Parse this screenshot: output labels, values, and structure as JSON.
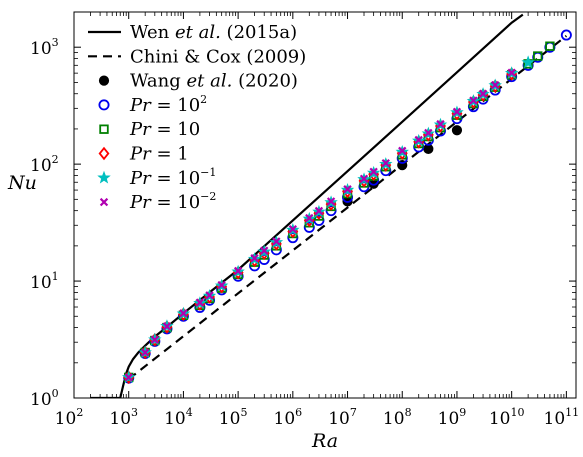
{
  "chart_data": {
    "type": "scatter",
    "xlabel": "Ra",
    "ylabel": "Nu",
    "xscale": "log",
    "yscale": "log",
    "xlim": [
      100,
      150000000000
    ],
    "ylim": [
      1,
      2000
    ],
    "grid": false,
    "legend_position": "top-left",
    "x_ticks": [
      {
        "base": "10",
        "exp": "2",
        "value": 100
      },
      {
        "base": "10",
        "exp": "3",
        "value": 1000
      },
      {
        "base": "10",
        "exp": "4",
        "value": 10000
      },
      {
        "base": "10",
        "exp": "5",
        "value": 100000
      },
      {
        "base": "10",
        "exp": "6",
        "value": 1000000
      },
      {
        "base": "10",
        "exp": "7",
        "value": 10000000
      },
      {
        "base": "10",
        "exp": "8",
        "value": 100000000
      },
      {
        "base": "10",
        "exp": "9",
        "value": 1000000000
      },
      {
        "base": "10",
        "exp": "10",
        "value": 10000000000
      },
      {
        "base": "10",
        "exp": "11",
        "value": 100000000000
      }
    ],
    "y_ticks": [
      {
        "base": "10",
        "exp": "0",
        "value": 1
      },
      {
        "base": "10",
        "exp": "1",
        "value": 10
      },
      {
        "base": "10",
        "exp": "2",
        "value": 100
      },
      {
        "base": "10",
        "exp": "3",
        "value": 1000
      }
    ],
    "series": [
      {
        "name": "Wen et al. (2015a)",
        "legend_parts": [
          {
            "text": "Wen ",
            "italic": false
          },
          {
            "text": "et al.",
            "italic": true
          },
          {
            "text": " (2015a)",
            "italic": false
          }
        ],
        "kind": "line",
        "style": "solid",
        "color": "#000000",
        "x": [
          200,
          400,
          600,
          700,
          800,
          900,
          1000,
          1200,
          1500,
          2000,
          3000,
          5000,
          10000,
          30000,
          100000,
          1000000,
          10000000,
          100000000,
          1000000000,
          10000000000,
          16000000000
        ],
        "y": [
          1.0,
          1.0,
          1.0,
          1.0,
          1.3,
          1.62,
          1.85,
          2.15,
          2.45,
          2.8,
          3.35,
          4.05,
          5.3,
          8.0,
          12.5,
          33,
          87,
          230,
          610,
          1620,
          1900
        ]
      },
      {
        "name": "Chini & Cox (2009)",
        "legend_parts": [
          {
            "text": "Chini & Cox (2009)",
            "italic": false
          }
        ],
        "kind": "line",
        "style": "dashed",
        "color": "#000000",
        "x": [
          1000,
          100000000000
        ],
        "y": [
          1.45,
          1250
        ]
      },
      {
        "name": "Wang et al. (2020)",
        "legend_parts": [
          {
            "text": "Wang ",
            "italic": false
          },
          {
            "text": "et al.",
            "italic": true
          },
          {
            "text": " (2020)",
            "italic": false
          }
        ],
        "kind": "marker",
        "marker": "filled-circle",
        "color": "#000000",
        "x": [
          10000000,
          30000000,
          100000000,
          300000000,
          1000000000
        ],
        "y": [
          48,
          68,
          98,
          135,
          195
        ]
      },
      {
        "name": "Pr = 10^2",
        "legend_parts": [
          {
            "text": "Pr",
            "italic": true
          },
          {
            "text": " = 10",
            "italic": false
          },
          {
            "text": "2",
            "italic": false,
            "sup": true
          }
        ],
        "kind": "marker",
        "marker": "open-circle",
        "color": "#0000ee",
        "x": [
          1000,
          2000,
          3000,
          5000,
          10000,
          20000,
          30000,
          50000,
          100000,
          200000,
          300000,
          500000,
          1000000,
          2000000,
          3000000,
          5000000,
          10000000,
          20000000,
          30000000,
          50000000,
          100000000,
          200000000,
          300000000,
          500000000,
          1000000000,
          2000000000,
          3000000000,
          5000000000,
          10000000000,
          20000000000,
          30000000000,
          50000000000,
          100000000000
        ],
        "y": [
          1.48,
          2.4,
          3.05,
          3.9,
          5.0,
          5.95,
          6.85,
          8.4,
          11.0,
          13.5,
          15.3,
          18.5,
          23.5,
          28.8,
          33.0,
          40.0,
          52.0,
          64.0,
          73.0,
          88.0,
          112,
          140,
          160,
          192,
          245,
          310,
          360,
          430,
          560,
          700,
          820,
          1000,
          1270
        ]
      },
      {
        "name": "Pr = 10",
        "legend_parts": [
          {
            "text": "Pr",
            "italic": true
          },
          {
            "text": " = 10",
            "italic": false
          }
        ],
        "kind": "marker",
        "marker": "open-square",
        "color": "#008000",
        "x": [
          1000,
          2000,
          3000,
          5000,
          10000,
          20000,
          30000,
          50000,
          100000,
          200000,
          300000,
          500000,
          1000000,
          2000000,
          3000000,
          5000000,
          10000000,
          20000000,
          30000000,
          50000000,
          100000000,
          200000000,
          300000000,
          500000000,
          1000000000,
          2000000000,
          3000000000,
          5000000000,
          10000000000,
          20000000000,
          30000000000,
          50000000000
        ],
        "y": [
          1.5,
          2.45,
          3.1,
          4.0,
          5.1,
          6.2,
          7.1,
          8.7,
          11.4,
          14.5,
          16.7,
          20.0,
          25.5,
          31.5,
          36.0,
          43.5,
          56.0,
          69.0,
          79.0,
          95.0,
          120,
          150,
          172,
          205,
          262,
          330,
          380,
          455,
          580,
          720,
          840,
          1020
        ]
      },
      {
        "name": "Pr = 1",
        "legend_parts": [
          {
            "text": "Pr",
            "italic": true
          },
          {
            "text": " = 1",
            "italic": false
          }
        ],
        "kind": "marker",
        "marker": "open-diamond",
        "color": "#ff0000",
        "x": [
          1000,
          2000,
          3000,
          5000,
          10000,
          20000,
          30000,
          50000,
          100000,
          200000,
          300000,
          500000,
          1000000,
          2000000,
          3000000,
          5000000,
          10000000,
          20000000,
          30000000,
          50000000,
          100000000,
          200000000,
          300000000,
          500000000,
          1000000000,
          2000000000,
          3000000000,
          5000000000,
          10000000000
        ],
        "y": [
          1.5,
          2.45,
          3.15,
          4.05,
          5.2,
          6.35,
          7.3,
          8.95,
          11.8,
          15.0,
          17.3,
          20.8,
          26.5,
          33.0,
          38.0,
          45.5,
          58.5,
          72.0,
          82.0,
          98.0,
          124,
          155,
          178,
          212,
          270,
          340,
          390,
          465,
          590
        ]
      },
      {
        "name": "Pr = 10^-1",
        "legend_parts": [
          {
            "text": "Pr",
            "italic": true
          },
          {
            "text": " = 10",
            "italic": false
          },
          {
            "text": "−1",
            "italic": false,
            "sup": true
          }
        ],
        "kind": "marker",
        "marker": "star",
        "color": "#00bfbf",
        "x": [
          1000,
          2000,
          3000,
          5000,
          10000,
          20000,
          30000,
          50000,
          100000,
          200000,
          300000,
          500000,
          1000000,
          2000000,
          3000000,
          5000000,
          10000000,
          20000000,
          30000000,
          50000000,
          100000000,
          200000000,
          300000000,
          500000000,
          1000000000,
          2000000000,
          3000000000,
          5000000000,
          10000000000,
          20000000000
        ],
        "y": [
          1.5,
          2.45,
          3.15,
          4.1,
          5.25,
          6.45,
          7.45,
          9.1,
          12.0,
          15.4,
          17.8,
          21.4,
          27.3,
          34.0,
          39.0,
          47.0,
          60.0,
          74.0,
          84.0,
          100,
          127,
          158,
          182,
          217,
          276,
          345,
          396,
          470,
          598,
          740
        ]
      },
      {
        "name": "Pr = 10^-2",
        "legend_parts": [
          {
            "text": "Pr",
            "italic": true
          },
          {
            "text": " = 10",
            "italic": false
          },
          {
            "text": "−2",
            "italic": false,
            "sup": true
          }
        ],
        "kind": "marker",
        "marker": "x",
        "color": "#b000b0",
        "x": [
          1000,
          2000,
          3000,
          5000,
          10000,
          20000,
          30000,
          50000,
          100000,
          200000,
          300000,
          500000,
          1000000,
          2000000,
          3000000,
          5000000,
          10000000,
          20000000,
          30000000,
          50000000,
          100000000,
          200000000,
          300000000,
          500000000,
          1000000000,
          2000000000,
          3000000000,
          5000000000,
          10000000000
        ],
        "y": [
          1.5,
          2.45,
          3.15,
          4.1,
          5.3,
          6.55,
          7.55,
          9.25,
          12.2,
          15.7,
          18.2,
          21.8,
          27.8,
          34.6,
          39.8,
          48.0,
          61.0,
          75.0,
          86.0,
          102,
          130,
          161,
          185,
          220,
          280,
          350,
          400,
          475,
          605
        ]
      }
    ]
  }
}
